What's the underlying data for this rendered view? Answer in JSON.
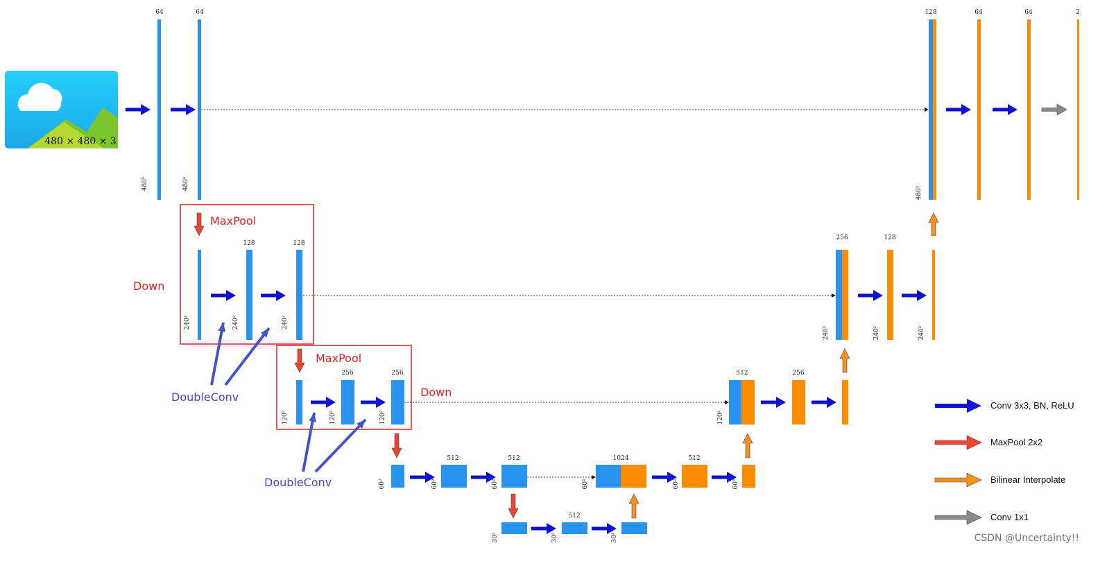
{
  "image": {
    "label": "480 × 480 × 3"
  },
  "channel_labels": [
    "64",
    "64",
    "128",
    "64",
    "64",
    "2",
    "128",
    "128",
    "256",
    "128",
    "256",
    "256",
    "512",
    "256",
    "512",
    "512",
    "1024",
    "512",
    "512"
  ],
  "size_labels": [
    "480²",
    "480²",
    "480²",
    "240²",
    "240²",
    "240²",
    "240²",
    "240²",
    "240²",
    "120²",
    "120²",
    "120²",
    "120²",
    "60²",
    "60²",
    "60²",
    "60²",
    "60²",
    "60²",
    "30²",
    "30²",
    "30²"
  ],
  "annotations": {
    "maxpool": [
      "MaxPool",
      "MaxPool"
    ],
    "down": [
      "Down",
      "Down"
    ],
    "doubleconv": [
      "DoubleConv",
      "DoubleConv"
    ]
  },
  "legend": [
    "Conv 3x3, BN, ReLU",
    "MaxPool 2x2",
    "Bilinear Interpolate",
    "Conv 1x1"
  ],
  "watermark": "CSDN @Uncertainty!!"
}
